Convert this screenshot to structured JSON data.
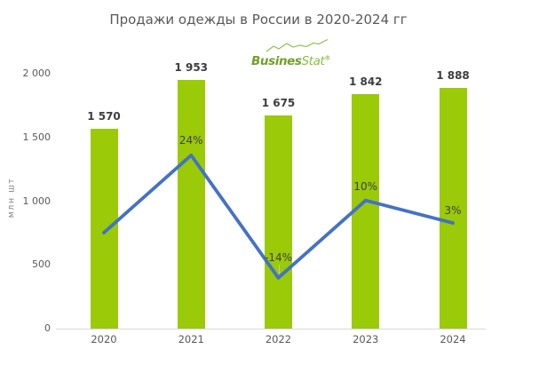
{
  "logo": {
    "brand_bold": "Busines",
    "brand_light": "Stat",
    "registered": "®",
    "color": "#7aa72f"
  },
  "chart_data": {
    "type": "bar",
    "combo": "bar with overlaid line (growth rate, secondary axis)",
    "title": "Продажи одежды в России в 2020-2024 гг",
    "categories": [
      "2020",
      "2021",
      "2022",
      "2023",
      "2024"
    ],
    "bar_series": {
      "values": [
        1570,
        1953,
        1675,
        1842,
        1888
      ],
      "data_labels": [
        "1 570",
        "1 953",
        "1 675",
        "1 842",
        "1 888"
      ],
      "color": "#9aca08"
    },
    "line_series": {
      "values_percent": [
        0,
        24,
        -14,
        10,
        3
      ],
      "data_labels": [
        "",
        "24%",
        "-14%",
        "10%",
        "3%"
      ],
      "color": "#4472c4"
    },
    "ylabel": "млн шт",
    "y_axis": {
      "tick_labels": [
        "0",
        "500",
        "1 000",
        "1 500",
        "2 000"
      ],
      "tick_values": [
        0,
        500,
        1000,
        1500,
        2000
      ],
      "range": [
        0,
        2000
      ]
    },
    "x_axis": {
      "tick_labels": [
        "2020",
        "2021",
        "2022",
        "2023",
        "2024"
      ]
    },
    "grid": false,
    "legend": "none",
    "colors": {
      "bar": "#9aca08",
      "line": "#4472c4",
      "axis_line": "#d9d9d9",
      "title_text": "#595959",
      "tick_text": "#595959",
      "bar_label_text": "#3d3d3d",
      "pct_label_text": "#404040",
      "axis_title_text": "#848484"
    }
  }
}
